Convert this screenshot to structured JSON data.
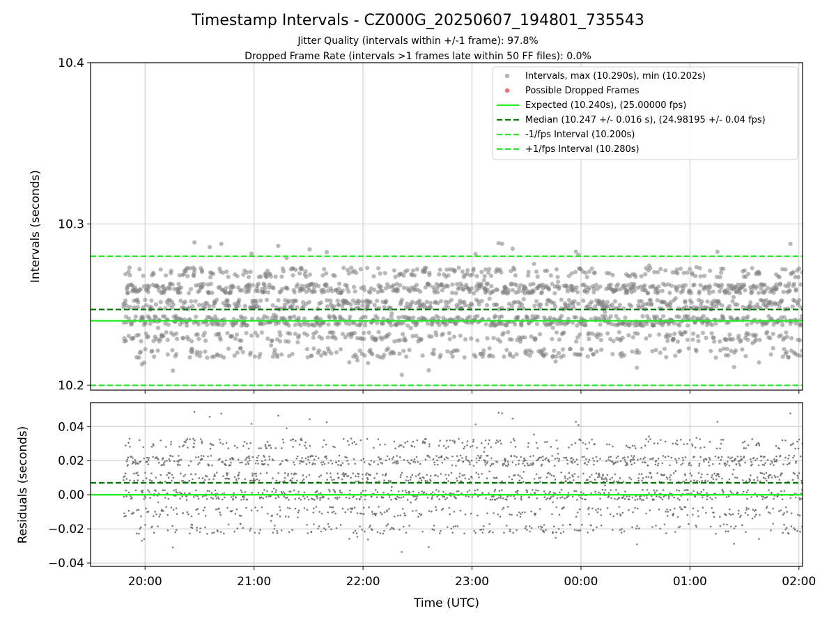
{
  "figure": {
    "title": "Timestamp Intervals - CZ000G_20250607_194801_735543",
    "subtitle_1": "Jitter Quality (intervals within +/-1 frame): 97.8%",
    "subtitle_2": "Dropped Frame Rate (intervals >1 frames late within 50 FF files): 0.0%",
    "xlabel": "Time (UTC)"
  },
  "colors": {
    "points": "#808080",
    "dropped": "#f06060",
    "expected": "#22ee22",
    "median": "#007a00",
    "bounds": "#22ee22",
    "grid": "#c8c8c8"
  },
  "chart_data": [
    {
      "type": "scatter",
      "panel": "intervals",
      "ylabel": "Intervals (seconds)",
      "ylim": [
        10.197,
        10.4
      ],
      "yticks": [
        10.2,
        10.3,
        10.4
      ],
      "ytick_labels": [
        "10.2",
        "10.3",
        "10.4"
      ],
      "xlim": [
        "19:30",
        "02:02"
      ],
      "xticks": [
        "20:00",
        "21:00",
        "22:00",
        "23:00",
        "00:00",
        "01:00",
        "02:00"
      ],
      "grid": true,
      "legend_position": "upper right",
      "legend": [
        "Intervals, max (10.290s), min (10.202s)",
        "Possible Dropped Frames",
        "Expected (10.240s), (25.00000 fps)",
        "Median (10.247 +/- 0.016 s), (24.98195 +/- 0.04 fps)",
        "-1/fps Interval (10.200s)",
        "+1/fps Interval (10.280s)"
      ],
      "reference_lines": {
        "expected": 10.24,
        "median": 10.247,
        "minus_one_frame": 10.2,
        "plus_one_frame": 10.28
      },
      "series": {
        "time_range": [
          "19:48",
          "02:02"
        ],
        "count_approx": 2190,
        "value_levels": [
          10.22,
          10.23,
          10.24,
          10.25,
          10.26,
          10.27
        ],
        "max": 10.29,
        "min": 10.202
      },
      "dropped_frames": []
    },
    {
      "type": "scatter",
      "panel": "residuals",
      "ylabel": "Residuals (seconds)",
      "ylim": [
        -0.042,
        0.054
      ],
      "yticks": [
        -0.04,
        -0.02,
        0.0,
        0.02,
        0.04
      ],
      "ytick_labels": [
        "−0.04",
        "−0.02",
        "0.00",
        "0.02",
        "0.04"
      ],
      "xlim": [
        "19:30",
        "02:02"
      ],
      "xticks": [
        "20:00",
        "21:00",
        "22:00",
        "23:00",
        "00:00",
        "01:00",
        "02:00"
      ],
      "grid": true,
      "reference_lines": {
        "expected": 0.0,
        "median": 0.007
      },
      "series": {
        "time_range": [
          "19:48",
          "02:02"
        ],
        "count_approx": 2190,
        "value_levels": [
          -0.02,
          -0.01,
          0.0,
          0.01,
          0.02,
          0.03
        ],
        "max": 0.05,
        "min": -0.038
      }
    }
  ]
}
